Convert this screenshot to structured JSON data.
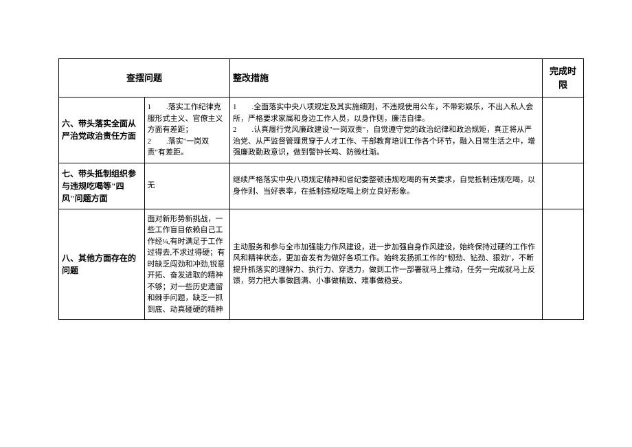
{
  "table": {
    "headers": {
      "problem": "查摆问题",
      "measure": "整改措施",
      "deadline": "完成时限"
    },
    "rows": [
      {
        "problem": "六、带头落实全面从严治党政治责任方面",
        "detail": "1　　.落实工作纪律克服形式主义、官僚主义方面有差距；\n2　　.落实\"一岗双责\"有差距。",
        "measure": "1　　.全面落实中央八项规定及其实施细则，不违规使用公车，不带彩娱乐，不出入私人会所，严格要求家属和身边工作人员，以身作则，廉洁自律。\n2　　.认真履行党风廉政建设\"一岗双责\"，自觉遵守党的政治纪律和政治规矩，真正将从严治党、从严监督管理贯穿于人才工作、干部教育培训工作各个环节，融入日常生活之中，增强廉政勤政意识，做到警钟长鸣、防微杜渐。",
        "deadline": ""
      },
      {
        "problem": "七、带头抵制组织参与违规吃喝等\"四风\"问题方面",
        "detail": "无",
        "measure": "继续严格落实中央八项规定精神和省纪委整顿违规吃喝的有关要求，自觉抵制违规吃喝，以身作则、当好表率，在抵制违规吃喝上树立良好形象。",
        "deadline": ""
      },
      {
        "problem": "八、其他方面存在的问题",
        "detail": "面对新形势新挑战，一些工作盲目依赖自己工作经¼,有时满足于工作过得去,不求过得硬；有时缺乏闯劲和冲劲,锐意开拓、奋发进取的精神不够；对一些历史遗留和棘手问题，缺乏一抓到底、动真碰硬的精神",
        "measure": "主动服务和参与全市加强能力作风建设，进一步加强自身作风建设，始终保持过硬的工作作风和精神状态，更加奋发有为做好各项工作。始终发扬抓工作的\"韧劲、钻劲、狠劲\"，不断提升抓落实的理解力、执行力、穿透力，做到工作一部署就马上推动，任务一完成就马上反馈，努力把大事做圆满、小事做精致、难事做稳妥。",
        "deadline": ""
      }
    ],
    "columns": {
      "problem_width": 117,
      "detail_width": 118,
      "measure_width": 455,
      "deadline_width": 60
    },
    "styling": {
      "border_color": "#000000",
      "background_color": "#ffffff",
      "text_color": "#000000",
      "header_fontsize": 13,
      "body_fontsize": 11,
      "problem_fontsize": 12,
      "font_family": "SimSun"
    }
  }
}
